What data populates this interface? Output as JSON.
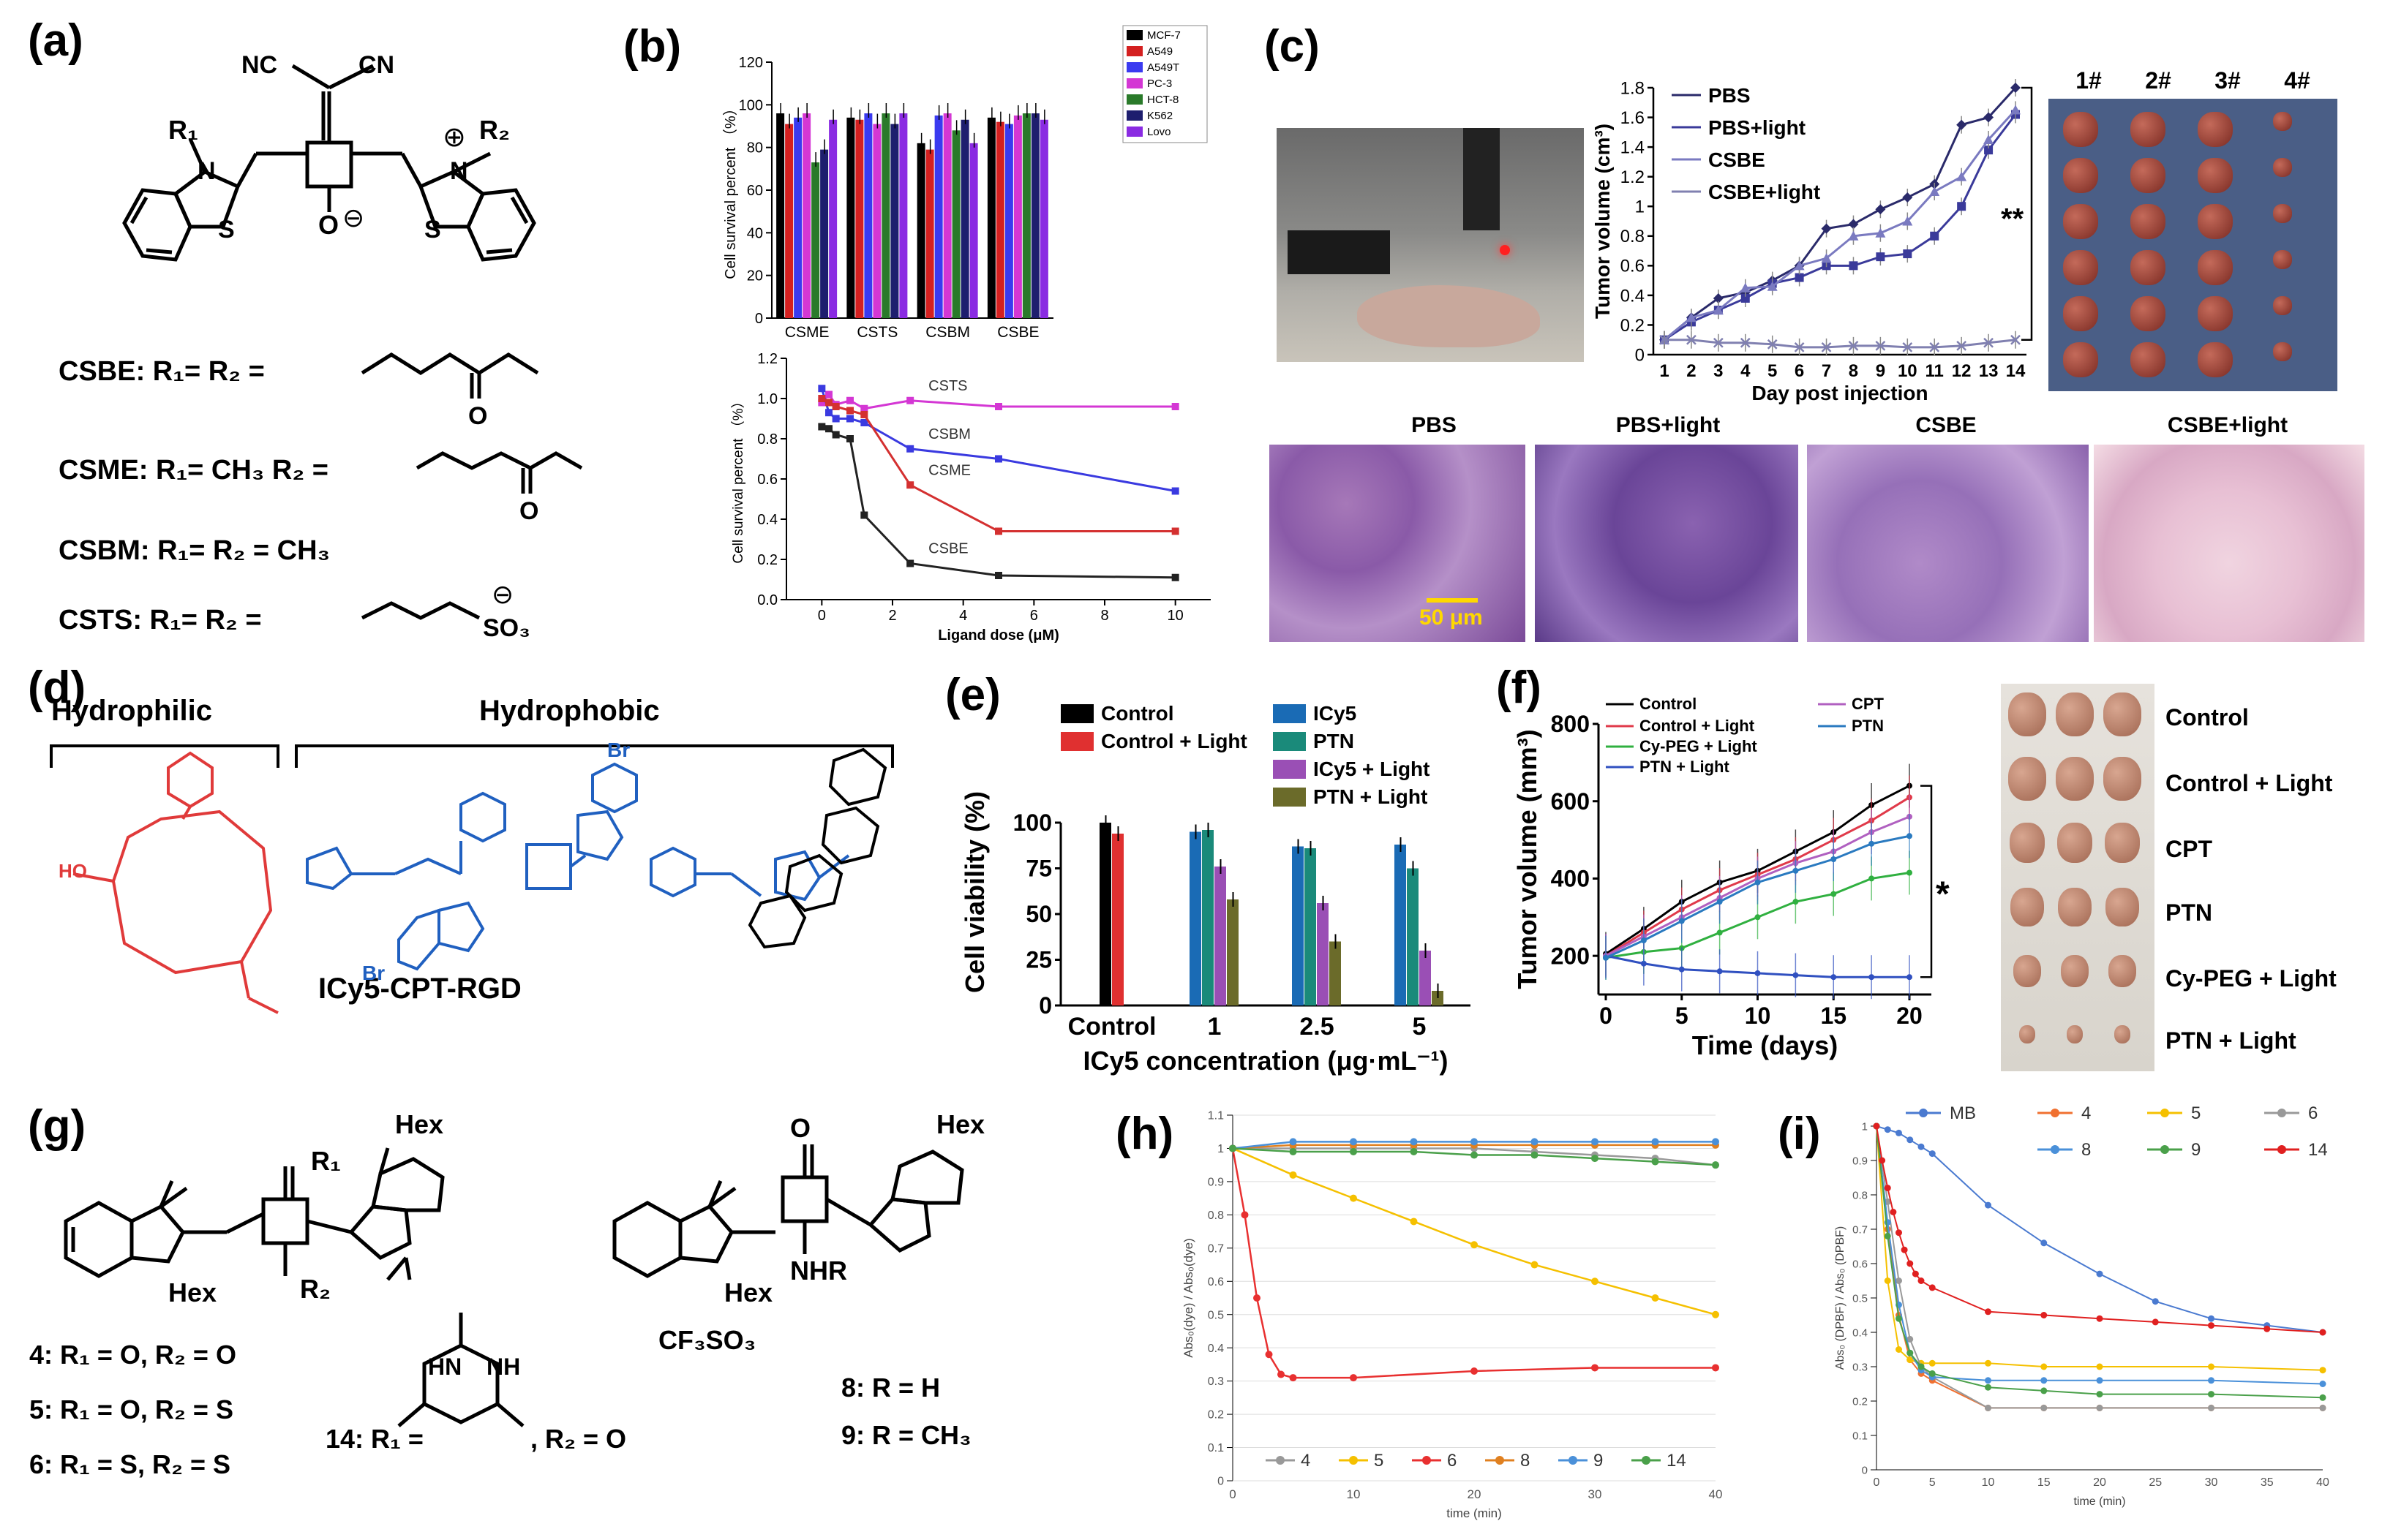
{
  "panels": {
    "a": {
      "label": "(a)",
      "groups": {
        "nc1": "NC",
        "nc2": "CN",
        "r1": "R₁",
        "r2": "R₂",
        "n_left": "N",
        "n_right": "N",
        "s_left": "S",
        "s_right": "S",
        "o_minus": "O",
        "plus": "⊕",
        "minus": "⊖"
      },
      "compounds": [
        {
          "name": "CSBE: R",
          "text": "CSBE: R₁= R₂ ="
        },
        {
          "name": "CSME",
          "text": "CSME: R₁= CH₃    R₂ ="
        },
        {
          "name": "CSBM",
          "text": "CSBM: R₁= R₂ = CH₃"
        },
        {
          "name": "CSTS",
          "text": "CSTS: R₁= R₂ ="
        }
      ],
      "sulfonate": "SO₃",
      "ester_o": "O",
      "sulfonate_charge": "⊖"
    },
    "b": {
      "label": "(b)"
    },
    "c": {
      "label": "(c)",
      "photo_numbers": [
        "1#",
        "2#",
        "3#",
        "4#"
      ],
      "histology": [
        "PBS",
        "PBS+light",
        "CSBE",
        "CSBE+light"
      ],
      "scale_bar": "50 μm"
    },
    "d": {
      "label": "(d)",
      "hydrophilic": "Hydrophilic",
      "hydrophobic": "Hydrophobic",
      "conjugate": "ICy5-CPT-RGD",
      "br": "Br"
    },
    "e": {
      "label": "(e)"
    },
    "f": {
      "label": "(f)",
      "photo_rows": [
        "Control",
        "Control + Light",
        "CPT",
        "PTN",
        "Cy-PEG + Light",
        "PTN + Light"
      ]
    },
    "g": {
      "label": "(g)",
      "hex": "Hex",
      "r1": "R₁",
      "r2": "R₂",
      "nhr": "NHR",
      "o": "O",
      "counterion": "CF₃SO₃",
      "items": [
        "4: R₁ = O, R₂ = O",
        "5: R₁ = O, R₂ = S",
        "6: R₁ = S, R₂ = S"
      ],
      "item14_a": "14: R₁ =",
      "item14_b": ", R₂ = O",
      "hn": "HN",
      "nh": "NH",
      "items_right": [
        "8: R = H",
        "9: R = CH₃"
      ]
    },
    "h": {
      "label": "(h)"
    },
    "i": {
      "label": "(i)"
    }
  },
  "colors": {
    "b_series": [
      "#000000",
      "#d42020",
      "#3a3af0",
      "#d437d4",
      "#2a7a2a",
      "#1e1e6e",
      "#8a2be2"
    ],
    "e_series": [
      "#000000",
      "#e03030",
      "#1a6bb5",
      "#1a8a7a",
      "#9a4fb5",
      "#6b6b2a"
    ],
    "f_series": [
      "#000000",
      "#e03a4a",
      "#30b040",
      "#3050c0",
      "#b060c0",
      "#2a7ac0"
    ],
    "h_series": [
      "#999999",
      "#f5c000",
      "#e83030",
      "#e08020",
      "#4a90d9",
      "#4aa04a"
    ],
    "i_series": [
      "#4a7ad0",
      "#f07030",
      "#f5c000",
      "#999999",
      "#4a90d9",
      "#4aa04a",
      "#e02020"
    ]
  },
  "chart_data": [
    {
      "id": "b_top",
      "type": "bar",
      "ylabel": "Cell survival percent （%）",
      "ylim": [
        0,
        120
      ],
      "yticks": [
        0,
        20,
        40,
        60,
        80,
        100,
        120
      ],
      "categories": [
        "CSME",
        "CSTS",
        "CSBM",
        "CSBE"
      ],
      "series": [
        {
          "name": "MCF-7",
          "values": [
            96,
            94,
            82,
            94
          ]
        },
        {
          "name": "A549",
          "values": [
            91,
            93,
            79,
            92
          ]
        },
        {
          "name": "A549T",
          "values": [
            94,
            96,
            95,
            91
          ]
        },
        {
          "name": "PC-3",
          "values": [
            96,
            91,
            96,
            95
          ]
        },
        {
          "name": "HCT-8",
          "values": [
            73,
            96,
            88,
            96
          ]
        },
        {
          "name": "K562",
          "values": [
            79,
            91,
            93,
            96
          ]
        },
        {
          "name": "Lovo",
          "values": [
            93,
            96,
            82,
            93
          ]
        }
      ]
    },
    {
      "id": "b_bottom",
      "type": "line",
      "xlabel": "Ligand dose (μM)",
      "ylabel": "Cell survival percent （%）",
      "xlim": [
        -1,
        11
      ],
      "ylim": [
        0,
        1.2
      ],
      "xticks": [
        0,
        2,
        4,
        6,
        8,
        10
      ],
      "yticks": [
        0.0,
        0.2,
        0.4,
        0.6,
        0.8,
        1.0,
        1.2
      ],
      "series": [
        {
          "name": "CSTS",
          "color": "#d437d4",
          "x": [
            0,
            0.2,
            0.4,
            0.8,
            1.2,
            2.5,
            5,
            10
          ],
          "y": [
            0.98,
            1.02,
            0.97,
            0.99,
            0.95,
            0.99,
            0.96,
            0.96
          ]
        },
        {
          "name": "CSBM",
          "color": "#3a3ae0",
          "x": [
            0,
            0.2,
            0.4,
            0.8,
            1.2,
            2.5,
            5,
            10
          ],
          "y": [
            1.05,
            0.93,
            0.9,
            0.9,
            0.88,
            0.75,
            0.7,
            0.54
          ]
        },
        {
          "name": "CSME",
          "color": "#d43030",
          "x": [
            0,
            0.2,
            0.4,
            0.8,
            1.2,
            2.5,
            5,
            10
          ],
          "y": [
            1.0,
            0.98,
            0.96,
            0.94,
            0.92,
            0.57,
            0.34,
            0.34
          ]
        },
        {
          "name": "CSBE",
          "color": "#222222",
          "x": [
            0,
            0.2,
            0.4,
            0.8,
            1.2,
            2.5,
            5,
            10
          ],
          "y": [
            0.86,
            0.85,
            0.82,
            0.8,
            0.42,
            0.18,
            0.12,
            0.11
          ]
        }
      ]
    },
    {
      "id": "c",
      "type": "line",
      "xlabel": "Day post injection",
      "ylabel": "Tumor volume (cm³)",
      "ylim": [
        0,
        1.8
      ],
      "yticks": [
        0,
        0.2,
        0.4,
        0.6,
        0.8,
        1,
        1.2,
        1.4,
        1.6,
        1.8
      ],
      "x": [
        1,
        2,
        3,
        4,
        5,
        6,
        7,
        8,
        9,
        10,
        11,
        12,
        13,
        14
      ],
      "annotation": "**",
      "series": [
        {
          "name": "PBS",
          "color": "#2a2a6a",
          "y": [
            0.1,
            0.25,
            0.38,
            0.42,
            0.5,
            0.6,
            0.85,
            0.88,
            0.98,
            1.06,
            1.15,
            1.55,
            1.6,
            1.8
          ]
        },
        {
          "name": "PBS+light",
          "color": "#3a3a9a",
          "y": [
            0.1,
            0.22,
            0.3,
            0.38,
            0.48,
            0.52,
            0.6,
            0.6,
            0.66,
            0.68,
            0.8,
            1.0,
            1.38,
            1.62
          ]
        },
        {
          "name": "CSBE",
          "color": "#7a7ac0",
          "y": [
            0.1,
            0.25,
            0.3,
            0.45,
            0.46,
            0.6,
            0.65,
            0.8,
            0.82,
            0.9,
            1.1,
            1.2,
            1.45,
            1.65
          ]
        },
        {
          "name": "CSBE+light",
          "color": "#8080b0",
          "y": [
            0.1,
            0.1,
            0.08,
            0.08,
            0.07,
            0.05,
            0.05,
            0.06,
            0.06,
            0.05,
            0.05,
            0.06,
            0.08,
            0.1
          ]
        }
      ]
    },
    {
      "id": "e",
      "type": "bar",
      "xlabel": "ICy5  concentration (μg·mL⁻¹)",
      "ylabel": "Cell viability (%)",
      "ylim": [
        0,
        100
      ],
      "yticks": [
        0,
        25,
        50,
        75,
        100
      ],
      "categories": [
        "Control",
        "1",
        "2.5",
        "5"
      ],
      "series": [
        {
          "name": "Control",
          "values": [
            100,
            null,
            null,
            null
          ]
        },
        {
          "name": "Control + Light",
          "values": [
            94,
            null,
            null,
            null
          ]
        },
        {
          "name": "ICy5",
          "values": [
            null,
            95,
            87,
            88
          ]
        },
        {
          "name": "PTN",
          "values": [
            null,
            96,
            86,
            75
          ]
        },
        {
          "name": "ICy5 + Light",
          "values": [
            null,
            76,
            56,
            30
          ]
        },
        {
          "name": "PTN + Light",
          "values": [
            null,
            58,
            35,
            8
          ]
        }
      ]
    },
    {
      "id": "f",
      "type": "line",
      "xlabel": "Time (days)",
      "ylabel": "Tumor volume (mm³)",
      "xlim": [
        0,
        20
      ],
      "ylim": [
        100,
        800
      ],
      "xticks": [
        0,
        5,
        10,
        15,
        20
      ],
      "yticks": [
        200,
        400,
        600,
        800
      ],
      "annotation": "*",
      "x": [
        0,
        2.5,
        5,
        7.5,
        10,
        12.5,
        15,
        17.5,
        20
      ],
      "series": [
        {
          "name": "Control",
          "y": [
            205,
            270,
            340,
            390,
            420,
            470,
            520,
            590,
            640
          ]
        },
        {
          "name": "Control + Light",
          "y": [
            200,
            260,
            320,
            370,
            410,
            450,
            500,
            550,
            610
          ]
        },
        {
          "name": "Cy-PEG + Light",
          "y": [
            195,
            210,
            220,
            260,
            300,
            340,
            360,
            400,
            415
          ]
        },
        {
          "name": "PTN + Light",
          "y": [
            200,
            180,
            165,
            160,
            155,
            150,
            145,
            145,
            145
          ]
        },
        {
          "name": "CPT",
          "y": [
            200,
            250,
            300,
            350,
            400,
            440,
            470,
            520,
            560
          ]
        },
        {
          "name": "PTN",
          "y": [
            195,
            240,
            290,
            340,
            390,
            420,
            450,
            490,
            510
          ]
        }
      ]
    },
    {
      "id": "h",
      "type": "line",
      "xlabel": "time (min)",
      "ylabel": "Abs₀(dye) / Abs₀(dye)",
      "xlim": [
        0,
        40
      ],
      "ylim": [
        0,
        1.1
      ],
      "xticks": [
        0,
        10,
        20,
        30,
        40
      ],
      "yticks": [
        0,
        0.1,
        0.2,
        0.3,
        0.4,
        0.5,
        0.6,
        0.7,
        0.8,
        0.9,
        1,
        1.1
      ],
      "series": [
        {
          "name": "4",
          "x": [
            0,
            5,
            10,
            15,
            20,
            25,
            30,
            35,
            40
          ],
          "y": [
            1.0,
            1.0,
            1.0,
            1.0,
            1.0,
            0.99,
            0.98,
            0.97,
            0.95
          ]
        },
        {
          "name": "5",
          "x": [
            0,
            5,
            10,
            15,
            20,
            25,
            30,
            35,
            40
          ],
          "y": [
            1.0,
            0.92,
            0.85,
            0.78,
            0.71,
            0.65,
            0.6,
            0.55,
            0.5
          ]
        },
        {
          "name": "6",
          "x": [
            0,
            1,
            2,
            3,
            4,
            5,
            10,
            20,
            30,
            40
          ],
          "y": [
            1.0,
            0.8,
            0.55,
            0.38,
            0.32,
            0.31,
            0.31,
            0.33,
            0.34,
            0.34
          ]
        },
        {
          "name": "8",
          "x": [
            0,
            5,
            10,
            15,
            20,
            25,
            30,
            35,
            40
          ],
          "y": [
            1.0,
            1.01,
            1.01,
            1.01,
            1.01,
            1.01,
            1.01,
            1.01,
            1.01
          ]
        },
        {
          "name": "9",
          "x": [
            0,
            5,
            10,
            15,
            20,
            25,
            30,
            35,
            40
          ],
          "y": [
            1.0,
            1.02,
            1.02,
            1.02,
            1.02,
            1.02,
            1.02,
            1.02,
            1.02
          ]
        },
        {
          "name": "14",
          "x": [
            0,
            5,
            10,
            15,
            20,
            25,
            30,
            35,
            40
          ],
          "y": [
            1.0,
            0.99,
            0.99,
            0.99,
            0.98,
            0.98,
            0.97,
            0.96,
            0.95
          ]
        }
      ]
    },
    {
      "id": "i",
      "type": "line",
      "xlabel": "time (min)",
      "ylabel": "Abs₀ (DPBF) / Abs₀ (DPBF)",
      "xlim": [
        0,
        40
      ],
      "ylim": [
        0,
        1
      ],
      "xticks": [
        0,
        5,
        10,
        15,
        20,
        25,
        30,
        35,
        40
      ],
      "yticks": [
        0,
        0.1,
        0.2,
        0.3,
        0.4,
        0.5,
        0.6,
        0.7,
        0.8,
        0.9,
        1
      ],
      "series": [
        {
          "name": "MB",
          "x": [
            0,
            1,
            2,
            3,
            4,
            5,
            10,
            15,
            20,
            25,
            30,
            35,
            40
          ],
          "y": [
            1.0,
            0.99,
            0.98,
            0.96,
            0.94,
            0.92,
            0.77,
            0.66,
            0.57,
            0.49,
            0.44,
            0.42,
            0.4
          ]
        },
        {
          "name": "4",
          "x": [
            0,
            1,
            2,
            3,
            4,
            5,
            10,
            15,
            20,
            30,
            40
          ],
          "y": [
            1.0,
            0.7,
            0.45,
            0.32,
            0.28,
            0.26,
            0.18,
            0.18,
            0.18,
            0.18,
            0.18
          ]
        },
        {
          "name": "5",
          "x": [
            0,
            1,
            2,
            3,
            4,
            5,
            10,
            15,
            20,
            30,
            40
          ],
          "y": [
            1.0,
            0.55,
            0.35,
            0.32,
            0.31,
            0.31,
            0.31,
            0.3,
            0.3,
            0.3,
            0.29
          ]
        },
        {
          "name": "6",
          "x": [
            0,
            1,
            2,
            3,
            4,
            5,
            10,
            15,
            20,
            30,
            40
          ],
          "y": [
            1.0,
            0.78,
            0.55,
            0.38,
            0.3,
            0.27,
            0.18,
            0.18,
            0.18,
            0.18,
            0.18
          ]
        },
        {
          "name": "8",
          "x": [
            0,
            1,
            2,
            3,
            4,
            5,
            10,
            15,
            20,
            30,
            40
          ],
          "y": [
            1.0,
            0.72,
            0.48,
            0.34,
            0.29,
            0.27,
            0.26,
            0.26,
            0.26,
            0.26,
            0.25
          ]
        },
        {
          "name": "9",
          "x": [
            0,
            1,
            2,
            3,
            4,
            5,
            10,
            15,
            20,
            30,
            40
          ],
          "y": [
            1.0,
            0.68,
            0.44,
            0.34,
            0.3,
            0.28,
            0.24,
            0.23,
            0.22,
            0.22,
            0.21
          ]
        },
        {
          "name": "14",
          "x": [
            0,
            0.5,
            1,
            1.5,
            2,
            2.5,
            3,
            3.5,
            4,
            5,
            10,
            15,
            20,
            25,
            30,
            35,
            40
          ],
          "y": [
            1.0,
            0.9,
            0.82,
            0.75,
            0.69,
            0.64,
            0.6,
            0.57,
            0.55,
            0.53,
            0.46,
            0.45,
            0.44,
            0.43,
            0.42,
            0.41,
            0.4
          ]
        }
      ]
    }
  ]
}
